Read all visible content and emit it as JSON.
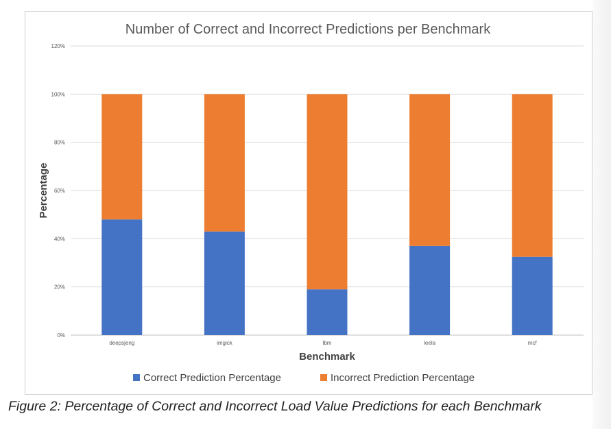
{
  "chart_data": {
    "type": "bar",
    "stacked": true,
    "title": "Number of Correct and Incorrect Predictions per Benchmark",
    "xlabel": "Benchmark",
    "ylabel": "Percentage",
    "categories": [
      "deepsjeng",
      "imgick",
      "lbm",
      "leela",
      "mcf"
    ],
    "series": [
      {
        "name": "Correct Prediction Percentage",
        "color": "#4472c4",
        "values": [
          48,
          43,
          19,
          37,
          32.5
        ]
      },
      {
        "name": "Incorrect Prediction Percentage",
        "color": "#ed7d31",
        "values": [
          52,
          57,
          81,
          63,
          67.5
        ]
      }
    ],
    "ylim": [
      0,
      120
    ],
    "yticks": [
      "0%",
      "20%",
      "40%",
      "60%",
      "80%",
      "100%",
      "120%"
    ],
    "grid": true,
    "legend_position": "bottom"
  },
  "caption": "Figure 2: Percentage of Correct and Incorrect Load Value Predictions for each Benchmark"
}
